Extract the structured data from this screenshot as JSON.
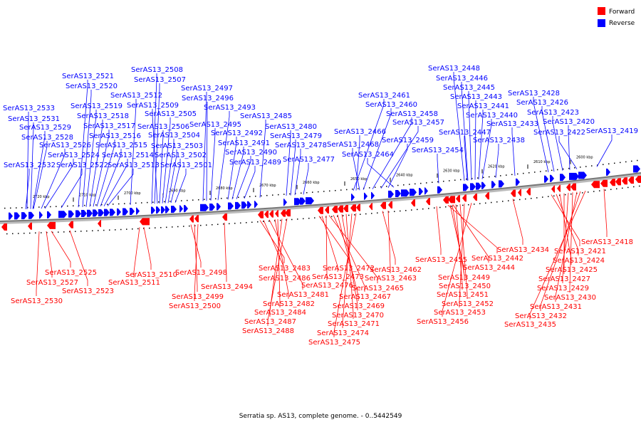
{
  "legend": {
    "forward": {
      "label": "Forward",
      "color": "#ff0000"
    },
    "reverse": {
      "label": "Reverse",
      "color": "#0000ff"
    }
  },
  "caption": "Serratia sp. AS13, complete genome. - 0..5442549",
  "backbone_color": "#888888",
  "ticks": [
    "2720 kbp",
    "2710 kbp",
    "2700 kbp",
    "2690 kbp",
    "2680 kbp",
    "2670 kbp",
    "2660 kbp",
    "2650 kbp",
    "2640 kbp",
    "2630 kbp",
    "2620 kbp",
    "2610 kbp",
    "2600 kbp"
  ],
  "reverse_labels": [
    "SerAS13_2533",
    "SerAS13_2531",
    "SerAS13_2529",
    "SerAS13_2528",
    "SerAS13_2532",
    "SerAS13_2526",
    "SerAS13_2524",
    "SerAS13_2522",
    "SerAS13_2521",
    "SerAS13_2520",
    "SerAS13_2519",
    "SerAS13_2518",
    "SerAS13_2517",
    "SerAS13_2516",
    "SerAS13_2515",
    "SerAS13_2514",
    "SerAS13_2513",
    "SerAS13_2508",
    "SerAS13_2507",
    "SerAS13_2512",
    "SerAS13_2509",
    "SerAS13_2505",
    "SerAS13_2506",
    "SerAS13_2504",
    "SerAS13_2503",
    "SerAS13_2502",
    "SerAS13_2501",
    "SerAS13_2497",
    "SerAS13_2496",
    "SerAS13_2493",
    "SerAS13_2495",
    "SerAS13_2492",
    "SerAS13_2491",
    "SerAS13_2490",
    "SerAS13_2489",
    "SerAS13_2485",
    "SerAS13_2480",
    "SerAS13_2479",
    "SerAS13_2478",
    "SerAS13_2477",
    "SerAS13_2461",
    "SerAS13_2460",
    "SerAS13_2458",
    "SerAS13_2457",
    "SerAS13_2466",
    "SerAS13_2459",
    "SerAS13_2468",
    "SerAS13_2464",
    "SerAS13_2454",
    "SerAS13_2448",
    "SerAS13_2446",
    "SerAS13_2445",
    "SerAS13_2443",
    "SerAS13_2441",
    "SerAS13_2440",
    "SerAS13_2433",
    "SerAS13_2447",
    "SerAS13_2438",
    "SerAS13_2428",
    "SerAS13_2426",
    "SerAS13_2423",
    "SerAS13_2420",
    "SerAS13_2422",
    "SerAS13_2419"
  ],
  "forward_labels": [
    "SerAS13_2525",
    "SerAS13_2527",
    "SerAS13_2523",
    "SerAS13_2530",
    "SerAS13_2510",
    "SerAS13_2511",
    "SerAS13_2498",
    "SerAS13_2499",
    "SerAS13_2500",
    "SerAS13_2494",
    "SerAS13_2483",
    "SerAS13_2486",
    "SerAS13_2481",
    "SerAS13_2482",
    "SerAS13_2484",
    "SerAS13_2487",
    "SerAS13_2488",
    "SerAS13_2472",
    "SerAS13_2473",
    "SerAS13_2476",
    "SerAS13_2465",
    "SerAS13_2467",
    "SerAS13_2469",
    "SerAS13_2470",
    "SerAS13_2471",
    "SerAS13_2474",
    "SerAS13_2475",
    "SerAS13_2462",
    "SerAS13_2463",
    "SerAS13_2455",
    "SerAS13_2442",
    "SerAS13_2444",
    "SerAS13_2449",
    "SerAS13_2450",
    "SerAS13_2451",
    "SerAS13_2452",
    "SerAS13_2453",
    "SerAS13_2456",
    "SerAS13_2434",
    "SerAS13_2421",
    "SerAS13_2424",
    "SerAS13_2425",
    "SerAS13_2427",
    "SerAS13_2429",
    "SerAS13_2430",
    "SerAS13_2431",
    "SerAS13_2432",
    "SerAS13_2435",
    "SerAS13_2418"
  ]
}
